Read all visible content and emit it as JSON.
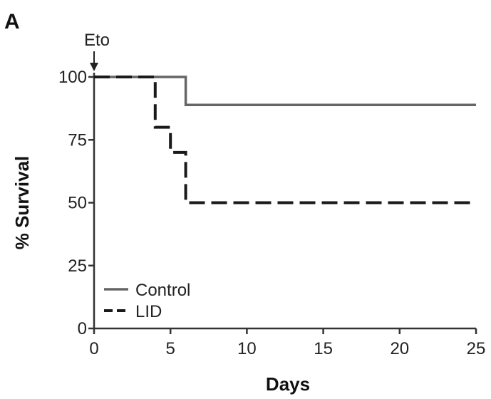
{
  "chart_data": {
    "type": "line",
    "panel_label": "A",
    "xlabel": "Days",
    "ylabel": "% Survival",
    "xlim": [
      0,
      25
    ],
    "ylim": [
      0,
      100
    ],
    "x_ticks": [
      "0",
      "5",
      "10",
      "15",
      "20",
      "25"
    ],
    "y_ticks": [
      "0",
      "25",
      "50",
      "75",
      "100"
    ],
    "grid": false,
    "legend_position": "bottom-left",
    "annotation": {
      "text": "Eto",
      "x": 0
    },
    "series": [
      {
        "name": "Control",
        "style": "solid",
        "color": "#666666",
        "points": [
          [
            0,
            100
          ],
          [
            6,
            100
          ],
          [
            6,
            88.9
          ],
          [
            25,
            88.9
          ]
        ]
      },
      {
        "name": "LID",
        "style": "dashed",
        "color": "#1a1a1a",
        "points": [
          [
            0,
            100
          ],
          [
            4,
            100
          ],
          [
            4,
            80
          ],
          [
            5,
            80
          ],
          [
            5,
            70
          ],
          [
            6,
            70
          ],
          [
            6,
            50
          ],
          [
            25,
            50
          ]
        ]
      }
    ]
  }
}
